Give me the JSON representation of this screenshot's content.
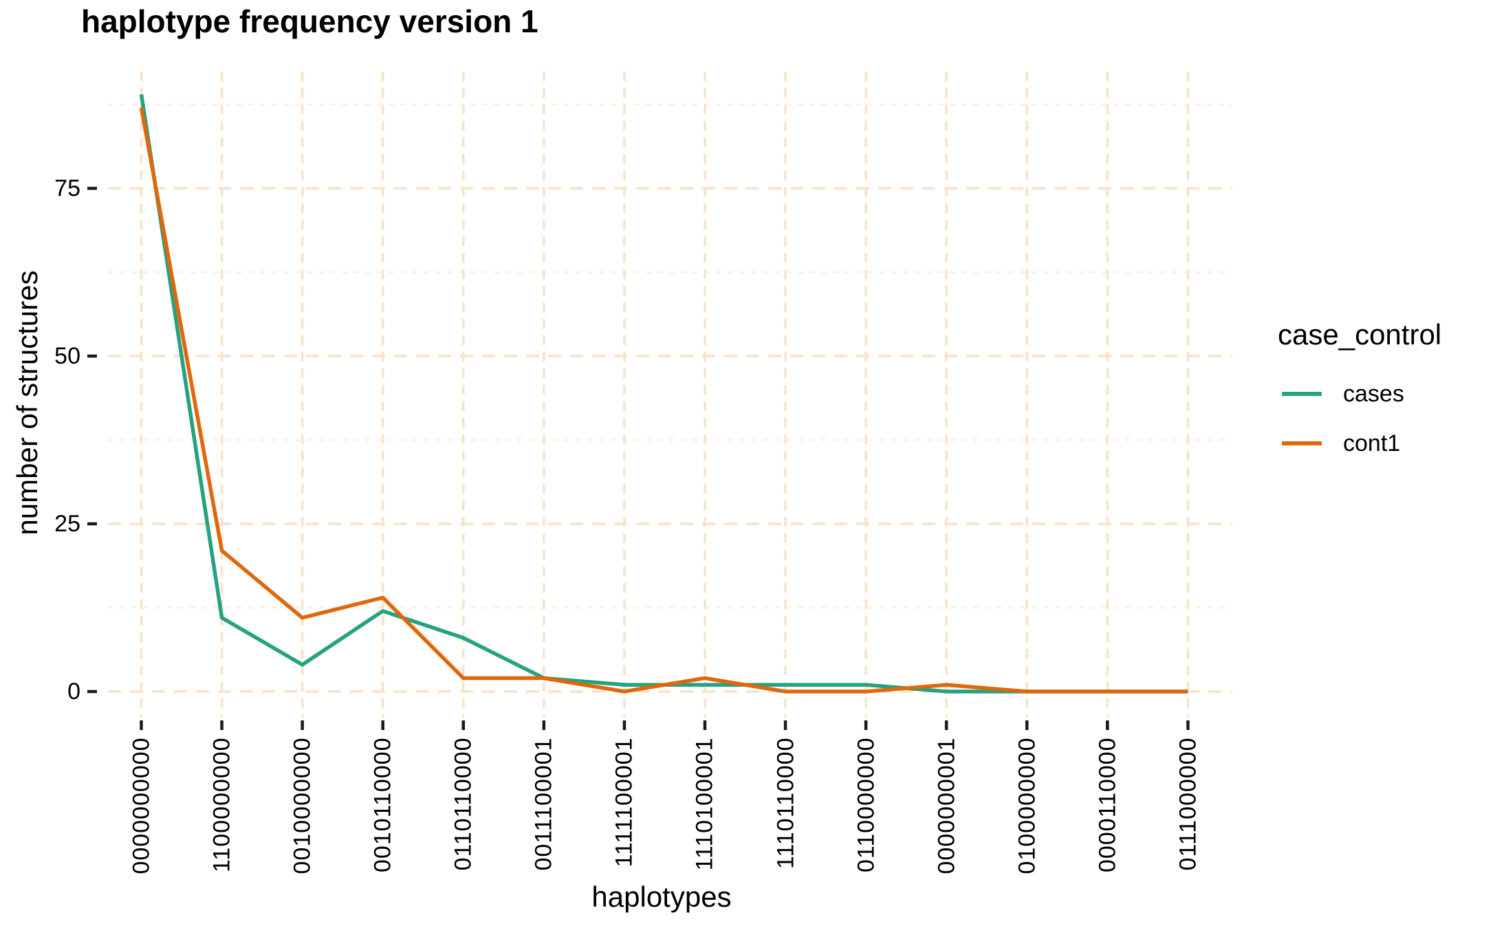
{
  "title": "haplotype frequency version 1",
  "colors": {
    "grid_major": "#f9e2c7",
    "grid_minor": "#fcefe0",
    "axis_tick": "#1a1a1a",
    "text": "#000000",
    "cases": "#25a27e",
    "cont1": "#e0670a"
  },
  "chart_data": {
    "type": "line",
    "title": "haplotype frequency version 1",
    "xlabel": "haplotypes",
    "ylabel": "number of structures",
    "legend_title": "case_control",
    "legend_position": "right",
    "grid": "dashed-on",
    "categories": [
      "0000000000",
      "1100000000",
      "0010000000",
      "0010110000",
      "0110110000",
      "0011100001",
      "1111100001",
      "1110100001",
      "1110110000",
      "0110000000",
      "0000000001",
      "0100000000",
      "0000110000",
      "0111000000"
    ],
    "series": [
      {
        "name": "cases",
        "color": "#25a27e",
        "values": [
          89,
          11,
          4,
          12,
          8,
          2,
          1,
          1,
          1,
          1,
          0,
          0,
          0,
          0
        ]
      },
      {
        "name": "cont1",
        "color": "#e0670a",
        "values": [
          87,
          21,
          11,
          14,
          2,
          2,
          0,
          2,
          0,
          0,
          1,
          0,
          0,
          0
        ]
      }
    ],
    "y_ticks": [
      0,
      25,
      50,
      75
    ],
    "y_minor_ticks": [
      12.5,
      37.5,
      62.5,
      87.5
    ],
    "ylim": [
      -4,
      92
    ]
  }
}
